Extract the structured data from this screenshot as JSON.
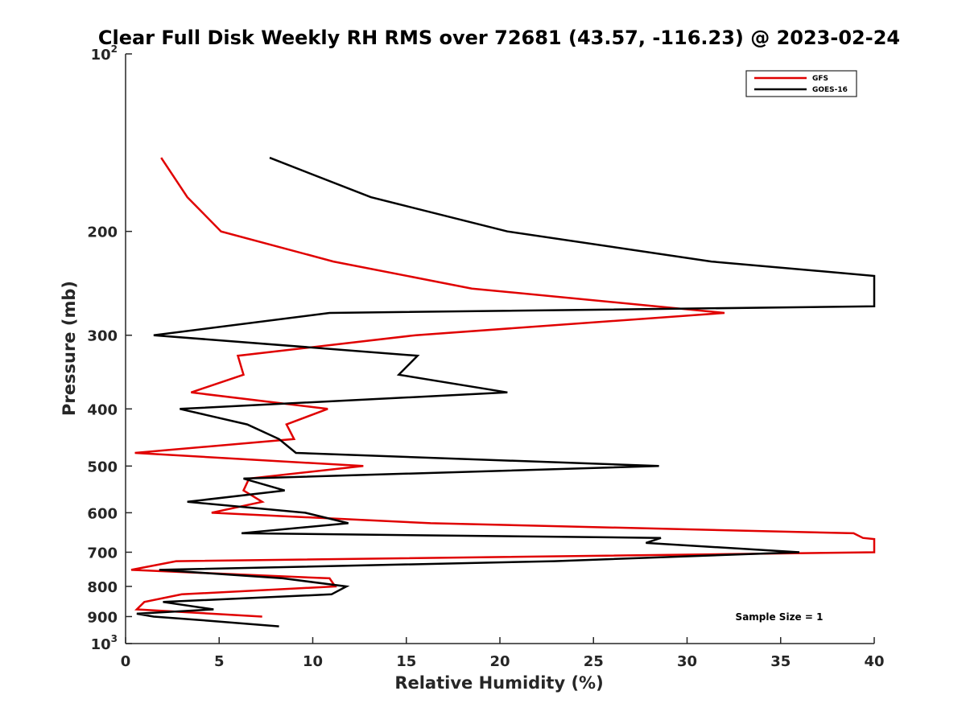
{
  "chart_data": {
    "type": "line",
    "title": "Clear Full Disk Weekly RH RMS over 72681 (43.57, -116.23) @ 2023-02-24",
    "xlabel": "Relative Humidity (%)",
    "ylabel": "Pressure (mb)",
    "xlim": [
      0,
      40
    ],
    "ylim": [
      100,
      1000
    ],
    "y_scale": "log",
    "y_reversed": true,
    "x_ticks": [
      "0",
      "5",
      "10",
      "15",
      "20",
      "25",
      "30",
      "35",
      "40"
    ],
    "y_ticks": [
      {
        "value": 100,
        "label": "10",
        "sup": "2"
      },
      {
        "value": 200,
        "label": "200"
      },
      {
        "value": 300,
        "label": "300"
      },
      {
        "value": 400,
        "label": "400"
      },
      {
        "value": 500,
        "label": "500"
      },
      {
        "value": 600,
        "label": "600"
      },
      {
        "value": 700,
        "label": "700"
      },
      {
        "value": 800,
        "label": "800"
      },
      {
        "value": 900,
        "label": "900"
      },
      {
        "value": 1000,
        "label": "10",
        "sup": "3"
      }
    ],
    "grid": false,
    "legend_position": "top-right",
    "annotation": "Sample Size = 1",
    "series": [
      {
        "name": "GFS",
        "color": "#e00000",
        "points": [
          {
            "x": 1.9,
            "y": 150
          },
          {
            "x": 3.3,
            "y": 175
          },
          {
            "x": 5.1,
            "y": 200
          },
          {
            "x": 11.1,
            "y": 225
          },
          {
            "x": 18.5,
            "y": 250
          },
          {
            "x": 32.0,
            "y": 275
          },
          {
            "x": 15.5,
            "y": 300
          },
          {
            "x": 6.0,
            "y": 325
          },
          {
            "x": 6.3,
            "y": 350
          },
          {
            "x": 3.5,
            "y": 375
          },
          {
            "x": 10.8,
            "y": 400
          },
          {
            "x": 8.6,
            "y": 425
          },
          {
            "x": 9.0,
            "y": 450
          },
          {
            "x": 0.5,
            "y": 475
          },
          {
            "x": 12.7,
            "y": 500
          },
          {
            "x": 6.6,
            "y": 525
          },
          {
            "x": 6.3,
            "y": 550
          },
          {
            "x": 7.3,
            "y": 575
          },
          {
            "x": 4.6,
            "y": 600
          },
          {
            "x": 16.3,
            "y": 625
          },
          {
            "x": 38.9,
            "y": 650
          },
          {
            "x": 39.4,
            "y": 662
          },
          {
            "x": 40.0,
            "y": 665
          },
          {
            "x": 40.0,
            "y": 700
          },
          {
            "x": 2.7,
            "y": 725
          },
          {
            "x": 0.3,
            "y": 750
          },
          {
            "x": 10.9,
            "y": 775
          },
          {
            "x": 11.2,
            "y": 800
          },
          {
            "x": 3.0,
            "y": 825
          },
          {
            "x": 1.0,
            "y": 850
          },
          {
            "x": 0.6,
            "y": 875
          },
          {
            "x": 7.3,
            "y": 900
          }
        ]
      },
      {
        "name": "GOES-16",
        "color": "#000000",
        "points": [
          {
            "x": 7.7,
            "y": 150
          },
          {
            "x": 13.1,
            "y": 175
          },
          {
            "x": 20.4,
            "y": 200
          },
          {
            "x": 31.3,
            "y": 225
          },
          {
            "x": 40.0,
            "y": 238
          },
          {
            "x": 40.0,
            "y": 268
          },
          {
            "x": 10.9,
            "y": 275
          },
          {
            "x": 1.5,
            "y": 300
          },
          {
            "x": 15.6,
            "y": 325
          },
          {
            "x": 14.6,
            "y": 350
          },
          {
            "x": 20.4,
            "y": 375
          },
          {
            "x": 2.9,
            "y": 400
          },
          {
            "x": 6.5,
            "y": 425
          },
          {
            "x": 8.2,
            "y": 450
          },
          {
            "x": 9.1,
            "y": 475
          },
          {
            "x": 28.5,
            "y": 500
          },
          {
            "x": 6.3,
            "y": 525
          },
          {
            "x": 8.5,
            "y": 550
          },
          {
            "x": 3.3,
            "y": 575
          },
          {
            "x": 9.6,
            "y": 600
          },
          {
            "x": 11.9,
            "y": 625
          },
          {
            "x": 6.2,
            "y": 650
          },
          {
            "x": 28.6,
            "y": 662
          },
          {
            "x": 27.8,
            "y": 675
          },
          {
            "x": 36.0,
            "y": 700
          },
          {
            "x": 22.9,
            "y": 725
          },
          {
            "x": 1.8,
            "y": 750
          },
          {
            "x": 8.4,
            "y": 775
          },
          {
            "x": 11.8,
            "y": 800
          },
          {
            "x": 11.0,
            "y": 825
          },
          {
            "x": 2.0,
            "y": 850
          },
          {
            "x": 4.7,
            "y": 875
          },
          {
            "x": 0.6,
            "y": 890
          },
          {
            "x": 1.5,
            "y": 900
          },
          {
            "x": 4.5,
            "y": 915
          },
          {
            "x": 8.2,
            "y": 935
          }
        ]
      }
    ]
  }
}
